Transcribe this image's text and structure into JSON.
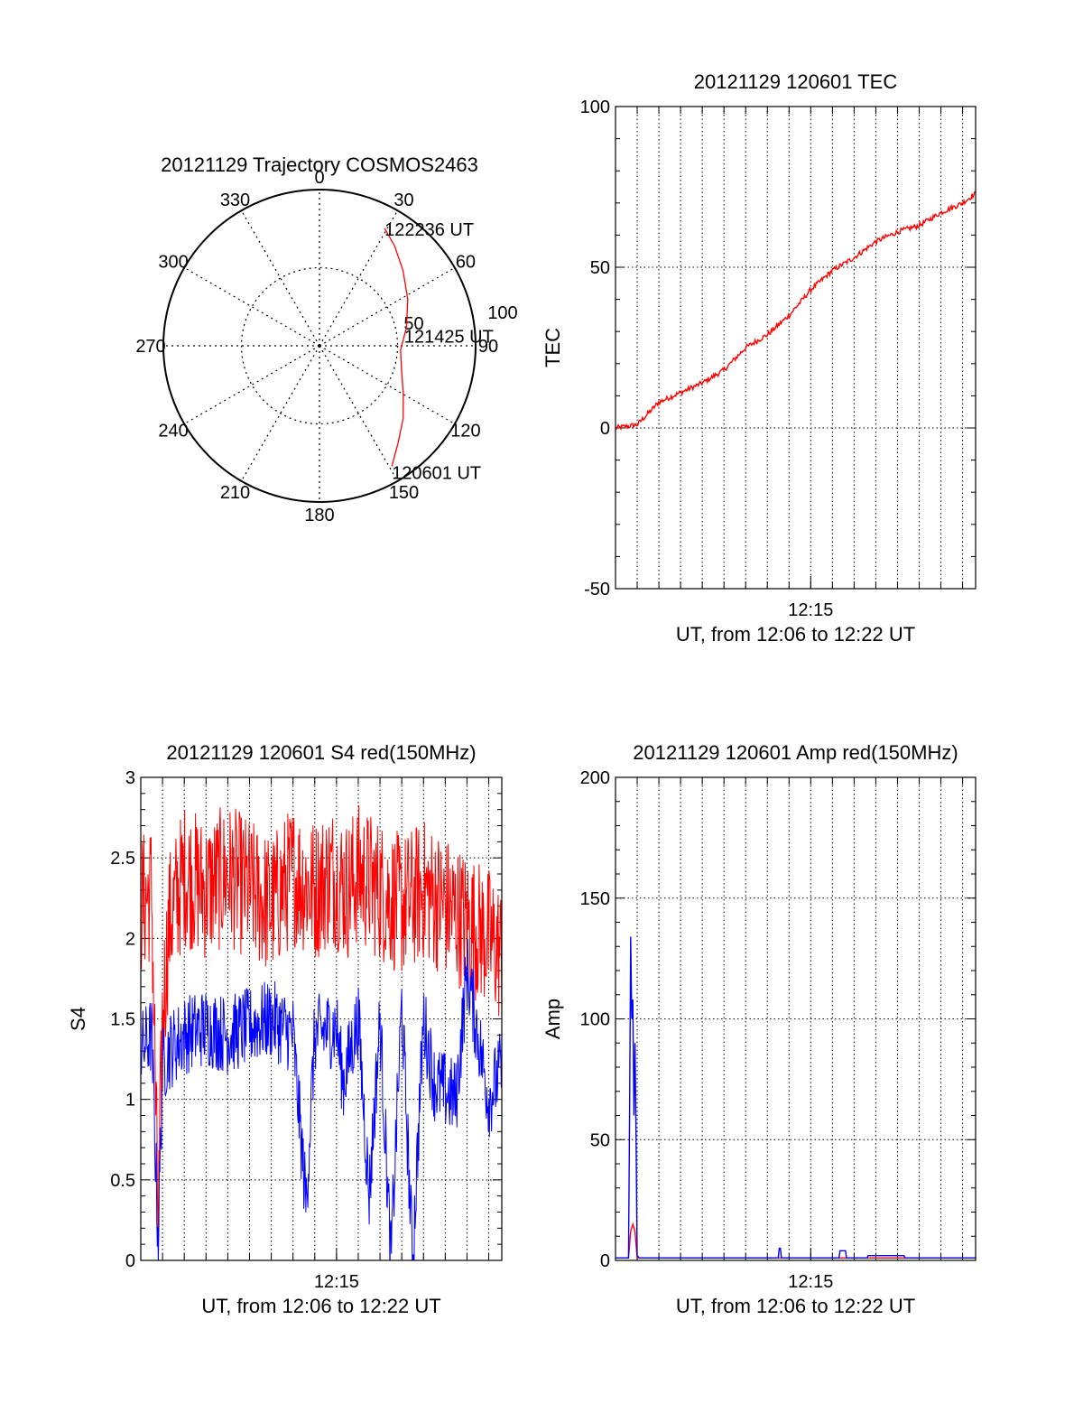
{
  "colors": {
    "red": "#ff0000",
    "blue": "#0000ff",
    "axis": "#000000",
    "grid": "#000000"
  },
  "chart_data": [
    {
      "id": "trajectory",
      "type": "polar",
      "title": "20121129 Trajectory COSMOS2463",
      "angle_labels": [
        "0",
        "30",
        "60",
        "90",
        "120",
        "150",
        "180",
        "210",
        "240",
        "270",
        "300",
        "330"
      ],
      "radius_labels": [
        "50",
        "100"
      ],
      "rmax": 100,
      "trajectory": {
        "azimuth": [
          29,
          37,
          48,
          62,
          78,
          93,
          107,
          120,
          131,
          141,
          149
        ],
        "zenith": [
          86,
          80,
          72,
          64,
          57,
          52,
          55,
          62,
          71,
          80,
          90
        ]
      },
      "annotations": [
        {
          "text": "122236 UT",
          "az": 29,
          "r": 86
        },
        {
          "text": "121425 UT",
          "az": 93,
          "r": 52
        },
        {
          "text": "120601 UT",
          "az": 149,
          "r": 90
        }
      ]
    },
    {
      "id": "tec",
      "type": "line",
      "title": "20121129 120601 TEC",
      "ylabel": "TEC",
      "xlabel": "UT, from 12:06 to 12:22 UT",
      "xlim": [
        726,
        742.6
      ],
      "ylim": [
        -50,
        100
      ],
      "yticks": [
        -50,
        0,
        50,
        100
      ],
      "xticks": [
        {
          "value": 735,
          "label": "12:15"
        }
      ],
      "grid": true,
      "series": [
        {
          "name": "",
          "color": "red",
          "x": [
            726,
            727,
            728,
            729,
            730,
            731,
            732,
            733,
            734,
            735,
            736,
            737,
            738,
            739,
            740,
            741,
            742,
            742.6
          ],
          "y": [
            0,
            1,
            8,
            11,
            14,
            18,
            25,
            29,
            35,
            43,
            49,
            53,
            58,
            61,
            63,
            67,
            70,
            73
          ]
        }
      ]
    },
    {
      "id": "s4",
      "type": "line",
      "title": "20121129 120601 S4 red(150MHz)",
      "ylabel": "S4",
      "xlabel": "UT, from 12:06 to 12:22 UT",
      "xlim": [
        726,
        742.6
      ],
      "ylim": [
        0,
        3
      ],
      "yticks": [
        0,
        0.5,
        1,
        1.5,
        2,
        2.5,
        3
      ],
      "xticks": [
        {
          "value": 735,
          "label": "12:15"
        }
      ],
      "grid": true,
      "series": [
        {
          "name": "",
          "color": "red",
          "x": [
            726,
            726.5,
            726.8,
            727,
            727.3,
            728,
            729,
            730,
            731,
            732,
            733,
            734,
            734.8,
            735.5,
            736,
            737,
            738,
            739,
            740,
            741,
            742,
            742.6
          ],
          "y": [
            2.2,
            2.3,
            0.2,
            1.5,
            2.1,
            2.4,
            2.3,
            2.4,
            2.3,
            2.2,
            2.4,
            2.3,
            2.4,
            2.3,
            2.4,
            2.3,
            2.2,
            2.3,
            2.2,
            2.1,
            2.0,
            1.9
          ],
          "noise": 0.45
        },
        {
          "name": "",
          "color": "blue",
          "x": [
            726,
            726.5,
            726.8,
            727,
            727.3,
            728,
            729,
            730,
            731,
            732,
            733,
            733.6,
            734,
            735,
            735.3,
            736,
            736.5,
            737,
            737.5,
            738,
            738.5,
            739,
            739.5,
            740,
            740.5,
            741,
            742,
            742.6
          ],
          "y": [
            1.3,
            1.4,
            0.12,
            1.2,
            1.3,
            1.4,
            1.45,
            1.4,
            1.45,
            1.5,
            1.4,
            0.35,
            1.4,
            1.45,
            1.1,
            1.5,
            0.4,
            1.5,
            0.0,
            1.6,
            0.0,
            1.5,
            1.1,
            1.05,
            1.0,
            1.8,
            1.0,
            1.2
          ],
          "noise": 0.25
        }
      ]
    },
    {
      "id": "amp",
      "type": "line",
      "title": "20121129 120601 Amp red(150MHz)",
      "ylabel": "Amp",
      "xlabel": "UT, from 12:06 to 12:22 UT",
      "xlim": [
        726,
        742.6
      ],
      "ylim": [
        0,
        200
      ],
      "yticks": [
        0,
        50,
        100,
        150,
        200
      ],
      "xticks": [
        {
          "value": 735,
          "label": "12:15"
        }
      ],
      "grid": true,
      "series": [
        {
          "name": "",
          "color": "red",
          "x": [
            726,
            726.6,
            726.7,
            726.8,
            726.9,
            727,
            742.6
          ],
          "y": [
            1,
            1,
            12,
            15,
            12,
            1,
            1
          ]
        },
        {
          "name": "",
          "color": "blue",
          "x": [
            726,
            726.6,
            726.65,
            726.7,
            726.75,
            726.8,
            726.85,
            726.9,
            726.95,
            727,
            727.1,
            733,
            733.5,
            733.55,
            733.6,
            733.65,
            735.3,
            736.3,
            736.35,
            736.6,
            736.65,
            737.6,
            737.65,
            739.3,
            739.35,
            742.6
          ],
          "y": [
            1,
            1,
            60,
            134,
            100,
            108,
            60,
            90,
            50,
            2,
            1,
            1,
            1,
            5,
            5,
            1,
            1,
            1,
            4,
            4,
            1,
            1,
            2,
            2,
            1,
            1
          ]
        }
      ]
    }
  ]
}
